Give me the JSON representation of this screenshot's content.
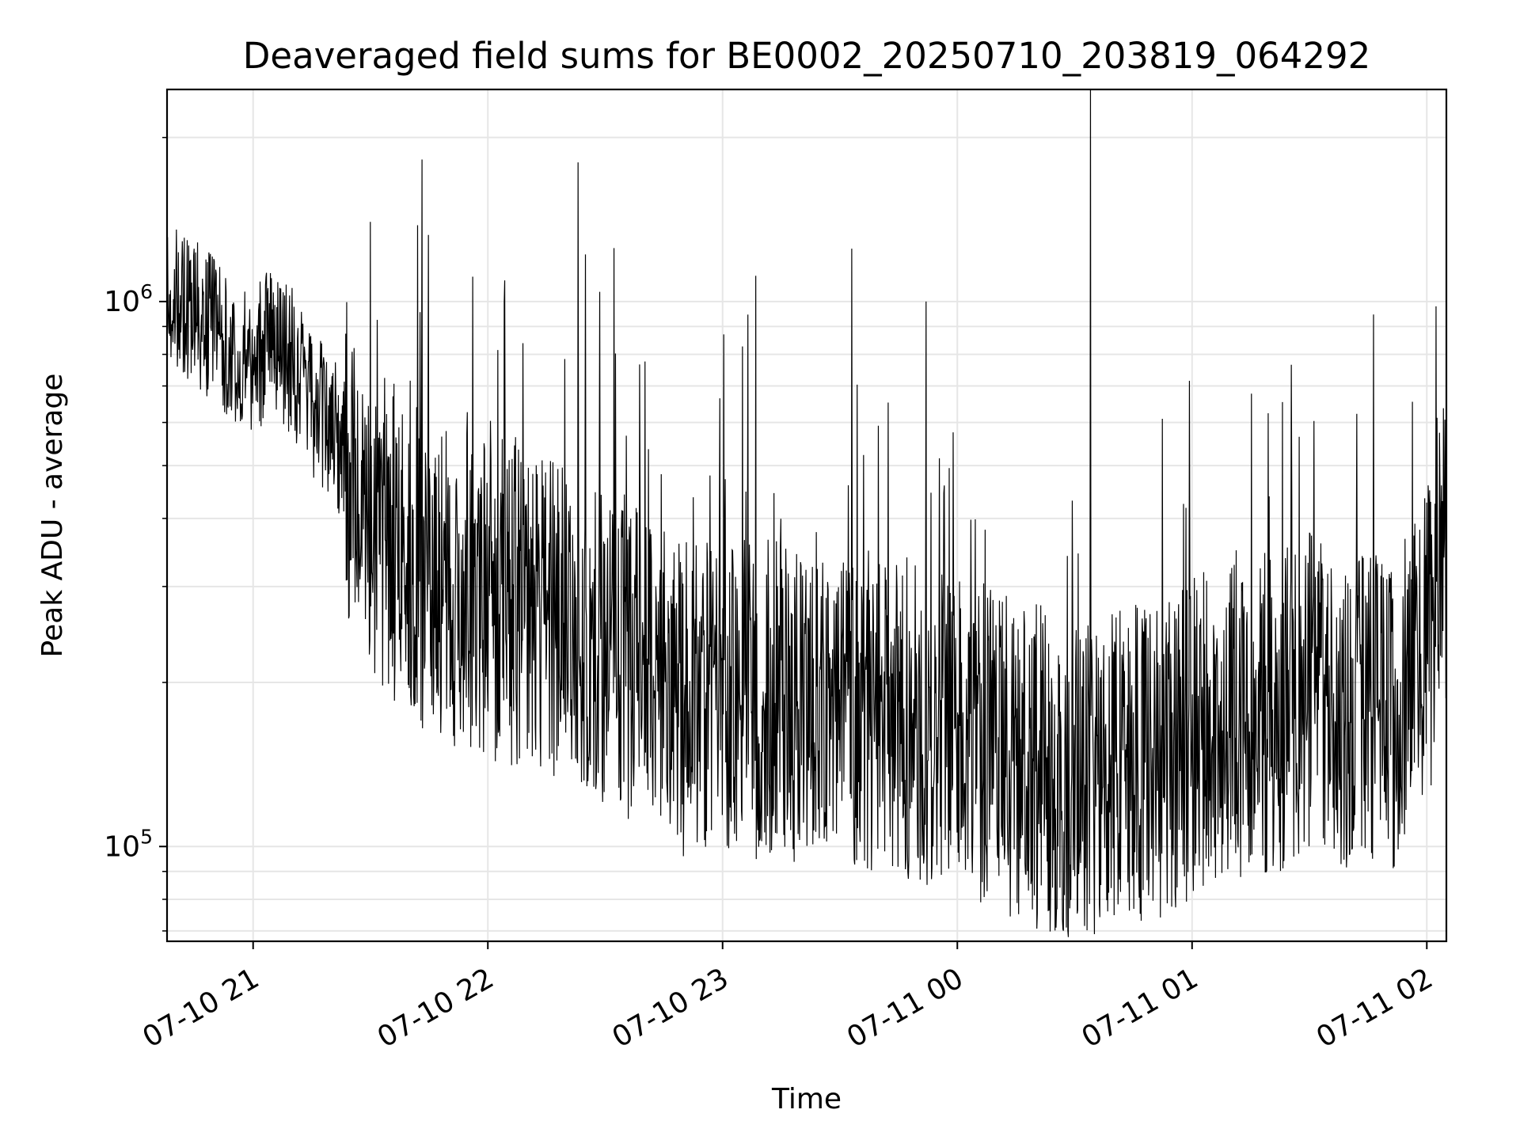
{
  "chart_data": {
    "type": "line",
    "title": "Deaveraged field sums for BE0002_20250710_203819_064292",
    "xlabel": "Time",
    "ylabel": "Peak ADU - average",
    "yscale": "log",
    "ylim": [
      67000,
      2450000
    ],
    "xlim": [
      "2025-07-10 20:38",
      "2025-07-11 02:05"
    ],
    "x_ticks": [
      {
        "value": "2025-07-10 21:00",
        "label": "07-10 21"
      },
      {
        "value": "2025-07-10 22:00",
        "label": "07-10 22"
      },
      {
        "value": "2025-07-10 23:00",
        "label": "07-10 23"
      },
      {
        "value": "2025-07-11 00:00",
        "label": "07-11 00"
      },
      {
        "value": "2025-07-11 01:00",
        "label": "07-11 01"
      },
      {
        "value": "2025-07-11 02:00",
        "label": "07-11 02"
      }
    ],
    "y_ticks": [
      {
        "value": 100000,
        "base": "10",
        "exp": "5"
      },
      {
        "value": 1000000,
        "base": "10",
        "exp": "6"
      }
    ],
    "grid": true,
    "line_color": "#000000",
    "series": [
      {
        "x": [
          "2025-07-10 20:38",
          "2025-07-10 20:45",
          "2025-07-10 20:50",
          "2025-07-10 20:55",
          "2025-07-10 21:00",
          "2025-07-10 21:05",
          "2025-07-10 21:10",
          "2025-07-10 21:15",
          "2025-07-10 21:20",
          "2025-07-10 21:25",
          "2025-07-10 21:30",
          "2025-07-10 21:40",
          "2025-07-10 21:50",
          "2025-07-10 22:00",
          "2025-07-10 22:10",
          "2025-07-10 22:20",
          "2025-07-10 22:30",
          "2025-07-10 22:40",
          "2025-07-10 22:50",
          "2025-07-10 23:00",
          "2025-07-10 23:10",
          "2025-07-10 23:20",
          "2025-07-10 23:30",
          "2025-07-10 23:40",
          "2025-07-10 23:50",
          "2025-07-11 00:00",
          "2025-07-11 00:10",
          "2025-07-11 00:20",
          "2025-07-11 00:30",
          "2025-07-11 00:40",
          "2025-07-11 00:50",
          "2025-07-11 01:00",
          "2025-07-11 01:10",
          "2025-07-11 01:20",
          "2025-07-11 01:30",
          "2025-07-11 01:40",
          "2025-07-11 01:50",
          "2025-07-11 02:00",
          "2025-07-11 02:05"
        ],
        "y": [
          1000000,
          950000,
          900000,
          820000,
          780000,
          850000,
          780000,
          650000,
          600000,
          500000,
          400000,
          330000,
          300000,
          290000,
          270000,
          250000,
          235000,
          215000,
          200000,
          190000,
          185000,
          180000,
          190000,
          175000,
          170000,
          165000,
          150000,
          140000,
          135000,
          140000,
          145000,
          160000,
          170000,
          175000,
          190000,
          180000,
          170000,
          230000,
          340000
        ]
      }
    ],
    "spikes": [
      {
        "x": "2025-07-10 21:30",
        "y": 1400000
      },
      {
        "x": "2025-07-10 22:23",
        "y": 1800000
      },
      {
        "x": "2025-07-10 23:33",
        "y": 1250000
      },
      {
        "x": "2025-07-10 23:52",
        "y": 1000000
      },
      {
        "x": "2025-07-11 00:34",
        "y": 2550000
      }
    ],
    "dips": [
      {
        "x": "2025-07-11 00:06",
        "y": 79000
      },
      {
        "x": "2025-07-11 00:31",
        "y": 89000
      },
      {
        "x": "2025-07-10 22:50",
        "y": 96000
      }
    ]
  }
}
